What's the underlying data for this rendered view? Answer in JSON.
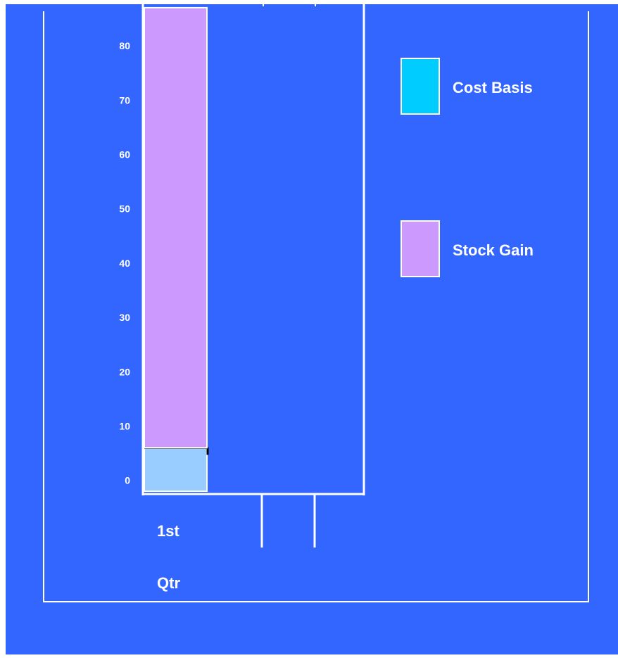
{
  "chart_data": {
    "type": "bar",
    "stacked": true,
    "categories": [
      "1st Qtr"
    ],
    "category_label_lines": [
      "1st",
      "Qtr"
    ],
    "series": [
      {
        "name": "Cost Basis",
        "values": [
          8
        ],
        "color": "#99ccff"
      },
      {
        "name": "Stock Gain",
        "values": [
          81
        ],
        "color": "#cc99ff"
      }
    ],
    "legend_entries": [
      {
        "label": "Cost Basis",
        "color": "#00ccff"
      },
      {
        "label": "Stock Gain",
        "color": "#cc99ff"
      }
    ],
    "yticks": [
      0,
      10,
      20,
      30,
      40,
      50,
      60,
      70,
      80
    ],
    "ylim": [
      0,
      89
    ],
    "grid": false,
    "legend_position": "right",
    "title": "",
    "xlabel": "",
    "ylabel": ""
  },
  "colors": {
    "background": "#3366ff",
    "frame": "#ffffff",
    "text": "#ffffff",
    "outer": "#ffffff"
  }
}
